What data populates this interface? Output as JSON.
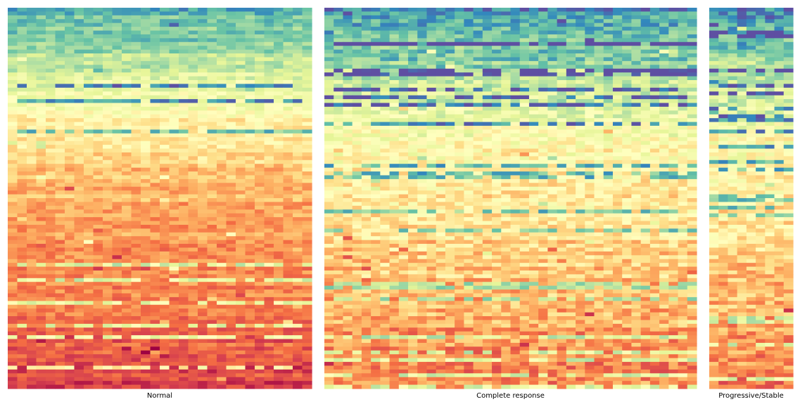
{
  "chart_data": {
    "type": "heatmap",
    "colormap": "Spectral",
    "colormap_stops": [
      "#5e4fa2",
      "#3288bd",
      "#66c2a5",
      "#abdda4",
      "#e6f598",
      "#ffffbf",
      "#fee08b",
      "#fdae61",
      "#f46d43",
      "#d53e4f",
      "#9e0142"
    ],
    "grid": false,
    "legend": "none",
    "description_of_values": "Per-panel matrices of value cells; rows ordered top to bottom from low (purple/blue) to high (orange/red), with per-cell noise and occasional outlier rows",
    "panels": [
      {
        "label": "Normal",
        "columns": 32,
        "rows": 100,
        "value_range": [
          0,
          1
        ],
        "row_trend": "sigmoid: purple at top, green-yellow in upper middle, pale yellow in middle, orange at bottom",
        "top_blue_rows": 8,
        "bottom_orange_rows": 6,
        "noise": 0.07,
        "outlier_row_probability": 0.1
      },
      {
        "label": "Complete response",
        "columns": 40,
        "rows": 100,
        "value_range": [
          0,
          1
        ],
        "row_trend": "dark blue/green over first ~35% of rows, yellow/pale middle, orange bottom",
        "top_blue_rows": 25,
        "bottom_orange_rows": 10,
        "noise": 0.1,
        "outlier_row_probability": 0.16
      },
      {
        "label": "Progressive/Stable",
        "columns": 9,
        "rows": 100,
        "value_range": [
          0,
          1
        ],
        "row_trend": "dark blue/green over first ~35% of rows, yellow/pale middle, orange bottom",
        "top_blue_rows": 25,
        "bottom_orange_rows": 10,
        "noise": 0.1,
        "outlier_row_probability": 0.16
      }
    ]
  }
}
